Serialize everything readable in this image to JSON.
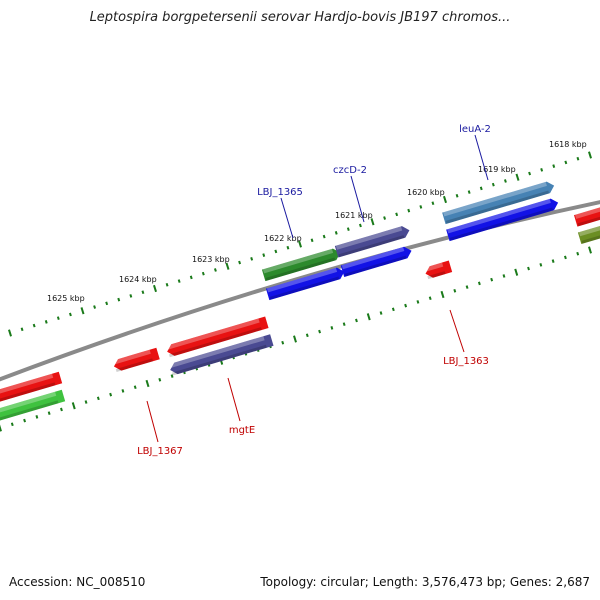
{
  "title": "Leptospira borgpetersenii serovar Hardjo-bovis JB197 chromos...",
  "footer": {
    "accession": "Accession: NC_008510",
    "stats": "Topology: circular; Length: 3,576,473 bp; Genes: 2,687"
  },
  "colors": {
    "backbone": "#7a7a7a",
    "tick": "#1a7a1a",
    "top_label": "#1a1aa0",
    "bottom_label": "#c00000",
    "red": "#e81212",
    "green_dark": "#2c8a2c",
    "green_light": "#3fc23f",
    "blue": "#1212e6",
    "purple": "#4a4a92",
    "steelblue": "#4682b4",
    "olive": "#6b8e23"
  },
  "scale_labels": [
    "1625 kbp",
    "1624 kbp",
    "1623 kbp",
    "1622 kbp",
    "1621 kbp",
    "1620 kbp",
    "1619 kbp",
    "1618 kbp"
  ],
  "gene_labels_top": [
    "LBJ_1365",
    "czcD-2",
    "leuA-2"
  ],
  "gene_labels_bottom": [
    "LBJ_1367",
    "mgtE",
    "LBJ_1363"
  ]
}
